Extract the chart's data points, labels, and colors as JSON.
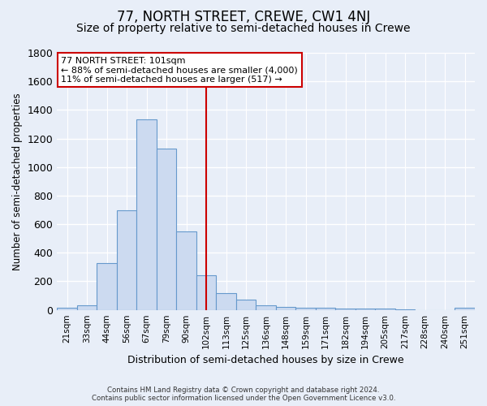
{
  "title": "77, NORTH STREET, CREWE, CW1 4NJ",
  "subtitle": "Size of property relative to semi-detached houses in Crewe",
  "xlabel": "Distribution of semi-detached houses by size in Crewe",
  "ylabel": "Number of semi-detached properties",
  "bin_labels": [
    "21sqm",
    "33sqm",
    "44sqm",
    "56sqm",
    "67sqm",
    "79sqm",
    "90sqm",
    "102sqm",
    "113sqm",
    "125sqm",
    "136sqm",
    "148sqm",
    "159sqm",
    "171sqm",
    "182sqm",
    "194sqm",
    "205sqm",
    "217sqm",
    "228sqm",
    "240sqm",
    "251sqm"
  ],
  "bar_heights": [
    15,
    30,
    330,
    695,
    1335,
    1130,
    550,
    240,
    120,
    70,
    30,
    20,
    15,
    15,
    10,
    10,
    10,
    5,
    0,
    0,
    15
  ],
  "bar_color": "#ccdaf0",
  "bar_edge_color": "#6699cc",
  "vline_x_index": 7,
  "vline_color": "#cc0000",
  "annotation_line1": "77 NORTH STREET: 101sqm",
  "annotation_line2": "← 88% of semi-detached houses are smaller (4,000)",
  "annotation_line3": "11% of semi-detached houses are larger (517) →",
  "annotation_box_color": "#ffffff",
  "annotation_box_edge": "#cc0000",
  "ylim": [
    0,
    1800
  ],
  "yticks": [
    0,
    200,
    400,
    600,
    800,
    1000,
    1200,
    1400,
    1600,
    1800
  ],
  "footer_text": "Contains HM Land Registry data © Crown copyright and database right 2024.\nContains public sector information licensed under the Open Government Licence v3.0.",
  "bg_color": "#e8eef8",
  "grid_color": "#ffffff",
  "title_fontsize": 12,
  "subtitle_fontsize": 10
}
